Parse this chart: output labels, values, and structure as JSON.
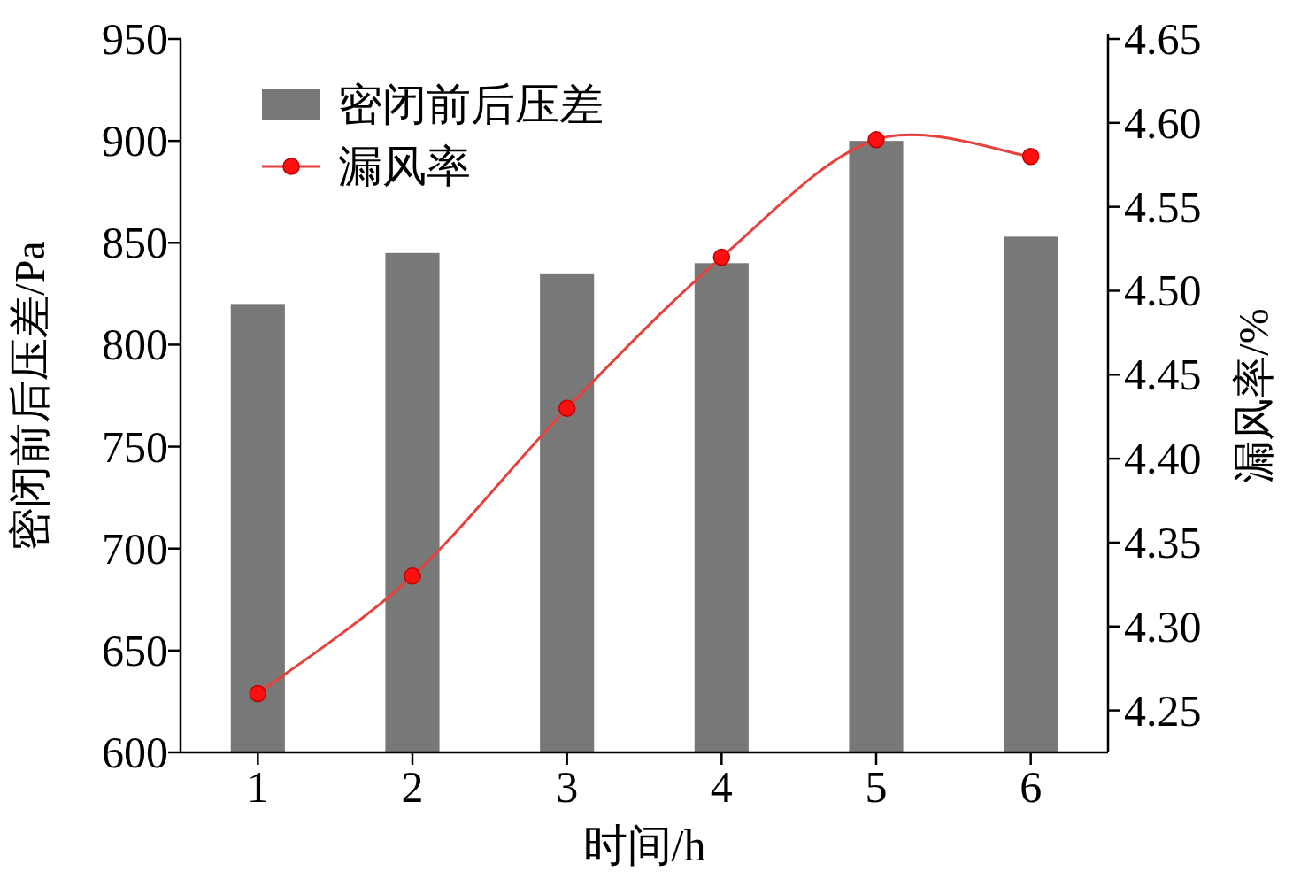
{
  "chart_data": {
    "type": "bar",
    "categories": [
      "1",
      "2",
      "3",
      "4",
      "5",
      "6"
    ],
    "series": [
      {
        "name": "密闭前后压差",
        "color": "#787878",
        "values": [
          820,
          845,
          835,
          840,
          900,
          853
        ]
      },
      {
        "name": "漏风率",
        "type": "line",
        "axis": "y2",
        "color": "#e8413c",
        "marker": "circle",
        "line_style": "solid",
        "values": [
          4.26,
          4.33,
          4.43,
          4.52,
          4.59,
          4.58
        ]
      }
    ],
    "xlabel": "时间/h",
    "ylabel": "密闭前后压差/Pa",
    "y2label": "漏风率/%",
    "ylim": [
      600,
      950
    ],
    "yticks": [
      600,
      650,
      700,
      750,
      800,
      850,
      900,
      950
    ],
    "y2lim": [
      4.225,
      4.65
    ],
    "y2ticks": [
      4.25,
      {
        "value": 4.3,
        "label": "4.30"
      },
      4.35,
      {
        "value": 4.4,
        "label": "4.40"
      },
      4.45,
      {
        "value": 4.5,
        "label": "4.50"
      },
      4.55,
      {
        "value": 4.6,
        "label": "4.60"
      },
      4.65
    ],
    "grid": false,
    "legend": "top left"
  }
}
